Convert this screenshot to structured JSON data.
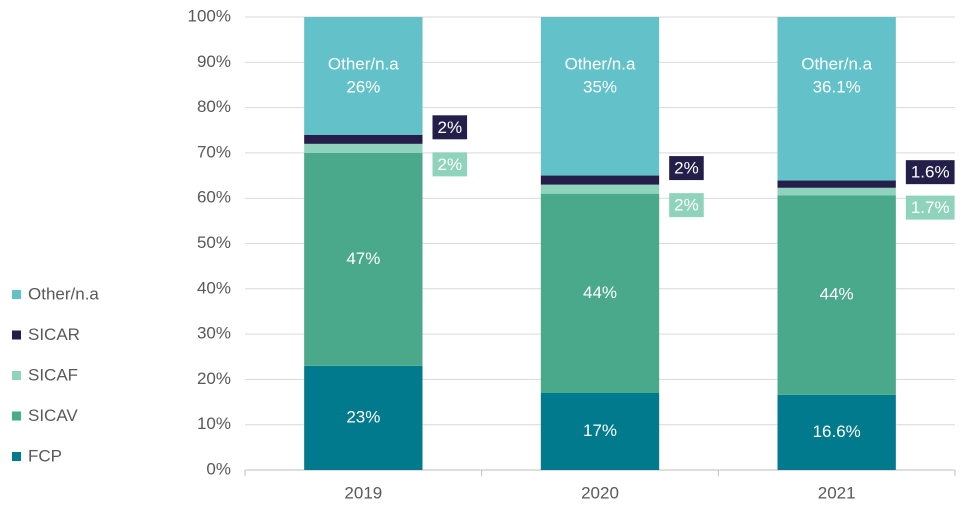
{
  "chart_data": {
    "type": "stacked_bar",
    "categories": [
      "2019",
      "2020",
      "2021"
    ],
    "series": [
      {
        "name": "FCP",
        "color": "#007a8c",
        "values": [
          23,
          17,
          16.6
        ],
        "value_labels": [
          "23%",
          "17%",
          "16.6%"
        ]
      },
      {
        "name": "SICAV",
        "color": "#4aa98a",
        "values": [
          47,
          44,
          44
        ],
        "value_labels": [
          "47%",
          "44%",
          "44%"
        ]
      },
      {
        "name": "SICAF",
        "color": "#8fd3bd",
        "values": [
          2,
          2,
          1.7
        ],
        "value_labels": [
          "2%",
          "2%",
          "1.7%"
        ]
      },
      {
        "name": "SICAR",
        "color": "#231f4a",
        "values": [
          2,
          2,
          1.6
        ],
        "value_labels": [
          "2%",
          "2%",
          "1.6%"
        ]
      },
      {
        "name": "Other/n.a",
        "color": "#63c2c9",
        "values": [
          26,
          35,
          36.1
        ],
        "value_labels": [
          "26%",
          "35%",
          "36.1%"
        ]
      }
    ],
    "ylim": [
      0,
      100
    ],
    "yticks": [
      {
        "value": 0,
        "label": "0%"
      },
      {
        "value": 10,
        "label": "10%"
      },
      {
        "value": 20,
        "label": "20%"
      },
      {
        "value": 30,
        "label": "30%"
      },
      {
        "value": 40,
        "label": "40%"
      },
      {
        "value": 50,
        "label": "50%"
      },
      {
        "value": 60,
        "label": "60%"
      },
      {
        "value": 70,
        "label": "70%"
      },
      {
        "value": 80,
        "label": "80%"
      },
      {
        "value": 90,
        "label": "90%"
      },
      {
        "value": 100,
        "label": "100%"
      }
    ],
    "grid": true,
    "legend": "left"
  }
}
